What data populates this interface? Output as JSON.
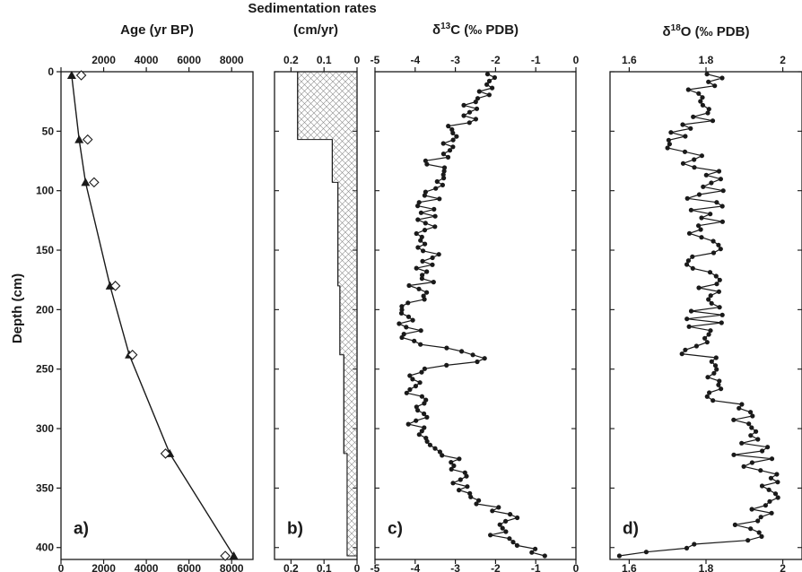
{
  "title": "Sedimentation rates",
  "ylabel": "Depth (cm)",
  "colors": {
    "ink": "#1a1a1a",
    "hatch": "#8a8a8a"
  },
  "chart_data": [
    {
      "type": "scatter",
      "panel_label": "a)",
      "title": "Age (yr BP)",
      "xlabel": "Age (yr BP)",
      "ylabel": "Depth (cm)",
      "xlim": [
        0,
        9000
      ],
      "ylim": [
        410,
        0
      ],
      "x_ticks": [
        0,
        2000,
        4000,
        6000,
        8000
      ],
      "y_ticks": [
        0,
        50,
        100,
        150,
        200,
        250,
        300,
        350,
        400
      ],
      "series": [
        {
          "marker": "filled-triangle",
          "line": true,
          "points": [
            [
              500,
              3
            ],
            [
              850,
              57
            ],
            [
              1150,
              93
            ],
            [
              2300,
              180
            ],
            [
              3200,
              238
            ],
            [
              5100,
              321
            ],
            [
              8100,
              407
            ]
          ]
        },
        {
          "marker": "open-diamond",
          "line": false,
          "points": [
            [
              950,
              3
            ],
            [
              1250,
              57
            ],
            [
              1550,
              93
            ],
            [
              2550,
              180
            ],
            [
              3350,
              238
            ],
            [
              4900,
              321
            ],
            [
              7700,
              407
            ]
          ]
        }
      ]
    },
    {
      "type": "area",
      "panel_label": "b)",
      "title": "Sedimentation rates (cm/yr)",
      "xlabel": "cm/yr",
      "xlim": [
        0.25,
        0
      ],
      "x_ticks": [
        0.2,
        0.1,
        0
      ],
      "x_tick_labels": [
        "0.2",
        "0.1",
        "0"
      ],
      "steps": [
        {
          "from": 0,
          "to": 57,
          "rate": 0.18
        },
        {
          "from": 57,
          "to": 93,
          "rate": 0.075
        },
        {
          "from": 93,
          "to": 180,
          "rate": 0.058
        },
        {
          "from": 180,
          "to": 238,
          "rate": 0.052
        },
        {
          "from": 238,
          "to": 321,
          "rate": 0.04
        },
        {
          "from": 321,
          "to": 407,
          "rate": 0.03
        }
      ]
    },
    {
      "type": "line",
      "panel_label": "c)",
      "title": "δ13C (‰ PDB)",
      "xlabel": "δ13C (‰ PDB)",
      "xlim": [
        -5,
        0
      ],
      "x_ticks": [
        -5,
        -4,
        -3,
        -2,
        -1,
        0
      ],
      "anchors": [
        [
          0,
          -2.3
        ],
        [
          10,
          -2.1
        ],
        [
          25,
          -2.5
        ],
        [
          40,
          -2.7
        ],
        [
          55,
          -3.3
        ],
        [
          70,
          -3.4
        ],
        [
          90,
          -3.6
        ],
        [
          110,
          -3.7
        ],
        [
          130,
          -3.8
        ],
        [
          150,
          -3.6
        ],
        [
          170,
          -3.8
        ],
        [
          185,
          -3.9
        ],
        [
          200,
          -4.1
        ],
        [
          215,
          -4.1
        ],
        [
          228,
          -4.0
        ],
        [
          236,
          -2.8
        ],
        [
          242,
          -2.2
        ],
        [
          246,
          -3.2
        ],
        [
          252,
          -3.9
        ],
        [
          262,
          -4.1
        ],
        [
          280,
          -4.0
        ],
        [
          300,
          -3.9
        ],
        [
          312,
          -3.7
        ],
        [
          322,
          -3.1
        ],
        [
          330,
          -3.0
        ],
        [
          345,
          -2.8
        ],
        [
          358,
          -2.7
        ],
        [
          366,
          -2.0
        ],
        [
          378,
          -1.6
        ],
        [
          390,
          -1.9
        ],
        [
          398,
          -1.2
        ],
        [
          405,
          -0.9
        ]
      ],
      "n_points": 140,
      "noise": 0.32
    },
    {
      "type": "line",
      "panel_label": "d)",
      "title": "δ18O (‰ PDB)",
      "xlabel": "δ18O (‰ PDB)",
      "xlim": [
        1.55,
        2.05
      ],
      "x_ticks": [
        1.6,
        1.8,
        2
      ],
      "x_tick_labels": [
        "1.6",
        "1.8",
        "2"
      ],
      "anchors": [
        [
          0,
          1.8
        ],
        [
          30,
          1.8
        ],
        [
          50,
          1.76
        ],
        [
          60,
          1.72
        ],
        [
          75,
          1.78
        ],
        [
          100,
          1.8
        ],
        [
          150,
          1.79
        ],
        [
          200,
          1.8
        ],
        [
          250,
          1.78
        ],
        [
          260,
          1.8
        ],
        [
          280,
          1.87
        ],
        [
          300,
          1.9
        ],
        [
          330,
          1.93
        ],
        [
          360,
          1.95
        ],
        [
          380,
          1.92
        ],
        [
          390,
          1.95
        ],
        [
          395,
          1.85
        ],
        [
          400,
          1.76
        ],
        [
          406,
          1.6
        ]
      ],
      "n_points": 125,
      "noise": 0.05
    }
  ]
}
